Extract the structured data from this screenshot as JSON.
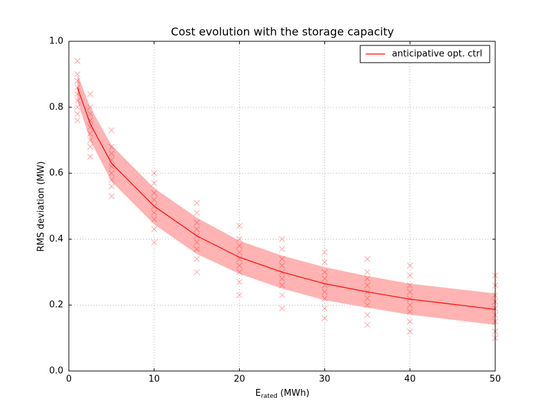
{
  "chart_data": {
    "type": "line",
    "title": "Cost evolution with the storage capacity",
    "x_label": {
      "main": "E",
      "sub": "rated",
      "unit": "(MWh)"
    },
    "y_label": "RMS deviation (MW)",
    "xlim": [
      0,
      50
    ],
    "ylim": [
      0,
      1
    ],
    "xticks": [
      0,
      10,
      20,
      30,
      40,
      50
    ],
    "yticks": [
      {
        "value": 0,
        "label": "0.0"
      },
      0.2,
      0.4,
      0.6,
      0.8,
      {
        "value": 1,
        "label": "1.0"
      }
    ],
    "grid": true,
    "legend": "upper right",
    "series": [
      {
        "name": "anticipative opt. ctrl",
        "color": "#ff0000",
        "band_color": "#ffb3b3",
        "x": [
          1,
          2.5,
          5,
          10,
          15,
          20,
          25,
          30,
          35,
          40,
          50
        ],
        "values": [
          0.86,
          0.75,
          0.63,
          0.5,
          0.41,
          0.345,
          0.3,
          0.265,
          0.24,
          0.218,
          0.187
        ],
        "band_upper": [
          0.9,
          0.8,
          0.685,
          0.555,
          0.465,
          0.395,
          0.35,
          0.315,
          0.288,
          0.265,
          0.235
        ],
        "band_lower": [
          0.82,
          0.7,
          0.575,
          0.445,
          0.355,
          0.295,
          0.25,
          0.215,
          0.192,
          0.171,
          0.14
        ]
      }
    ],
    "scatter": {
      "color": "#ff0000",
      "x": [
        1,
        1,
        1,
        1,
        1,
        1,
        1,
        1,
        1,
        2.5,
        2.5,
        2.5,
        2.5,
        2.5,
        2.5,
        2.5,
        2.5,
        2.5,
        5,
        5,
        5,
        5,
        5,
        5,
        5,
        5,
        5,
        10,
        10,
        10,
        10,
        10,
        10,
        10,
        10,
        10,
        15,
        15,
        15,
        15,
        15,
        15,
        15,
        15,
        15,
        20,
        20,
        20,
        20,
        20,
        20,
        20,
        20,
        20,
        25,
        25,
        25,
        25,
        25,
        25,
        25,
        25,
        25,
        30,
        30,
        30,
        30,
        30,
        30,
        30,
        30,
        30,
        35,
        35,
        35,
        35,
        35,
        35,
        35,
        35,
        35,
        40,
        40,
        40,
        40,
        40,
        40,
        40,
        40,
        40,
        50,
        50,
        50,
        50,
        50,
        50,
        50,
        50,
        50
      ],
      "values": [
        0.94,
        0.9,
        0.88,
        0.86,
        0.84,
        0.82,
        0.8,
        0.78,
        0.76,
        0.84,
        0.8,
        0.78,
        0.76,
        0.74,
        0.72,
        0.7,
        0.68,
        0.65,
        0.73,
        0.68,
        0.66,
        0.64,
        0.62,
        0.6,
        0.58,
        0.56,
        0.53,
        0.6,
        0.57,
        0.54,
        0.52,
        0.5,
        0.48,
        0.46,
        0.43,
        0.39,
        0.51,
        0.48,
        0.45,
        0.43,
        0.41,
        0.39,
        0.37,
        0.34,
        0.3,
        0.44,
        0.4,
        0.38,
        0.36,
        0.34,
        0.32,
        0.3,
        0.27,
        0.23,
        0.4,
        0.37,
        0.34,
        0.32,
        0.3,
        0.28,
        0.26,
        0.23,
        0.19,
        0.36,
        0.33,
        0.3,
        0.28,
        0.26,
        0.24,
        0.22,
        0.19,
        0.16,
        0.34,
        0.3,
        0.28,
        0.26,
        0.24,
        0.22,
        0.2,
        0.17,
        0.14,
        0.32,
        0.29,
        0.26,
        0.24,
        0.22,
        0.2,
        0.18,
        0.15,
        0.12,
        0.29,
        0.26,
        0.23,
        0.21,
        0.19,
        0.17,
        0.15,
        0.12,
        0.1
      ]
    }
  }
}
